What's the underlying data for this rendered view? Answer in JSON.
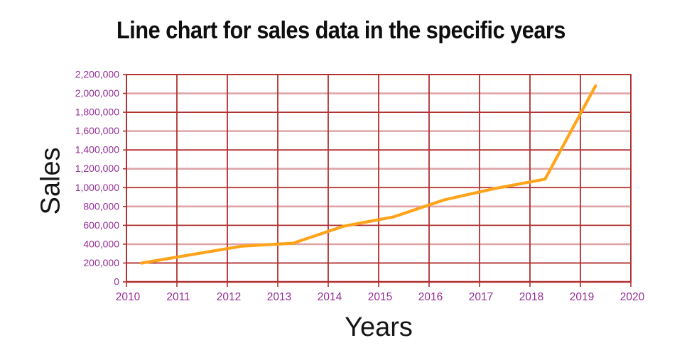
{
  "title": "Line chart for sales data in the specific years",
  "axes": {
    "x_title": "Years",
    "y_title": "Sales"
  },
  "chart_data": {
    "type": "line",
    "title": "Line chart for sales data in the specific years",
    "xlabel": "Years",
    "ylabel": "Sales",
    "categories": [
      2010,
      2011,
      2012,
      2013,
      2014,
      2015,
      2016,
      2017,
      2018,
      2019
    ],
    "values": [
      200000,
      290000,
      380000,
      410000,
      590000,
      690000,
      870000,
      990000,
      1090000,
      2080000
    ],
    "xlim": [
      2010,
      2020
    ],
    "ylim": [
      0,
      2200000
    ],
    "x_ticks": [
      2010,
      2011,
      2012,
      2013,
      2014,
      2015,
      2016,
      2017,
      2018,
      2019,
      2020
    ],
    "y_ticks": [
      0,
      200000,
      400000,
      600000,
      800000,
      1000000,
      1200000,
      1400000,
      1600000,
      1800000,
      2000000,
      2200000
    ],
    "y_tick_labels": [
      "0",
      "200,000",
      "400,000",
      "600,000",
      "800,000",
      "1,000,000",
      "1,200,000",
      "1,400,000",
      "1,600,000",
      "1,800,000",
      "2,000,000",
      "2,200,000"
    ],
    "x_point_offset": 0.3,
    "grid": "boxed plot; vertical gridlines dark red each year; horizontal gridlines every 200,000 alternating dark red / light pink",
    "legend_position": "none"
  },
  "colors": {
    "line": "#ffa41b",
    "grid_dark": "#b23030",
    "grid_light": "#dfa4a6",
    "axis": "#b23030",
    "tick_label": "#942d96",
    "title_text": "#0e0e0e",
    "axis_title_text": "#161616",
    "background": "#ffffff"
  }
}
